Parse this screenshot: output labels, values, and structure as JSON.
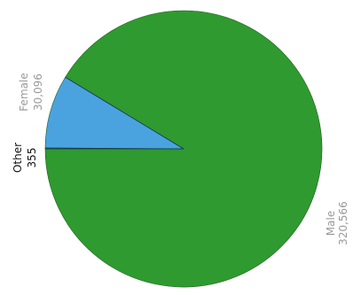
{
  "chart_data": {
    "type": "pie",
    "title": "",
    "slices": [
      {
        "label": "Male",
        "value_label": "320,566",
        "value": 320566,
        "color": "#2f9a2f"
      },
      {
        "label": "Female",
        "value_label": "30,096",
        "value": 30096,
        "color": "#4aa3df"
      },
      {
        "label": "Other",
        "value_label": "355",
        "value": 355,
        "color": "#2f9a2f"
      }
    ],
    "labels_rotated": true
  }
}
